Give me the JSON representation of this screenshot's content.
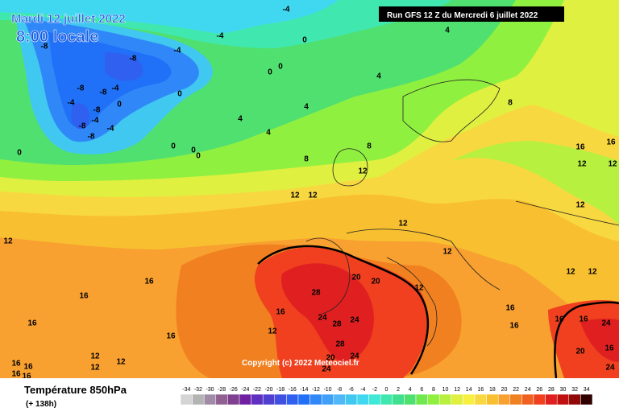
{
  "header": {
    "date": "Mardi 12 juillet 2022",
    "time": "8:00 locale",
    "run": "Run GFS 12 Z du Mercredi 6 juillet 2022",
    "copyright": "Copyright (c) 2022 Meteociel.fr"
  },
  "footer": {
    "title": "Température 850hPa",
    "lead": "(+ 138h)"
  },
  "legend": {
    "values": [
      -34,
      -32,
      -30,
      -28,
      -26,
      -24,
      -22,
      -20,
      -18,
      -16,
      -14,
      -12,
      -10,
      -8,
      -6,
      -4,
      -2,
      0,
      2,
      4,
      6,
      8,
      10,
      12,
      14,
      16,
      18,
      20,
      22,
      24,
      26,
      28,
      30,
      32,
      34
    ],
    "colors": [
      "#d4d4d4",
      "#b4b4b4",
      "#a08ca8",
      "#906090",
      "#804090",
      "#7020a0",
      "#6030c0",
      "#5040d0",
      "#4050e0",
      "#3060f0",
      "#2070f8",
      "#3088f8",
      "#40a0f8",
      "#50b8f8",
      "#40c8f0",
      "#40d8f0",
      "#40e8d8",
      "#40e8b0",
      "#40e090",
      "#50e070",
      "#70e850",
      "#90f040",
      "#b8f040",
      "#e0f040",
      "#f8f040",
      "#f8d840",
      "#f8c030",
      "#f8a030",
      "#f08020",
      "#f06020",
      "#f04020",
      "#e02020",
      "#c01010",
      "#900808",
      "#300000"
    ]
  },
  "contour_labels": [
    -4,
    -4,
    0,
    -8,
    -8,
    -4,
    0,
    0,
    -8,
    -8,
    -4,
    -4,
    -8,
    0,
    0,
    -4,
    -4,
    -8,
    -8,
    4,
    4,
    4,
    4,
    4,
    8,
    8,
    8,
    0,
    0,
    0,
    0,
    12,
    12,
    12,
    12,
    12,
    12,
    12,
    16,
    16,
    12,
    16,
    16,
    16,
    16,
    16,
    12,
    20,
    20,
    28,
    24,
    28,
    24,
    28,
    24,
    20,
    24,
    16,
    16,
    24,
    20,
    16,
    24,
    12,
    12,
    12,
    16,
    16,
    16,
    16,
    12,
    12,
    12,
    16,
    16,
    12
  ]
}
